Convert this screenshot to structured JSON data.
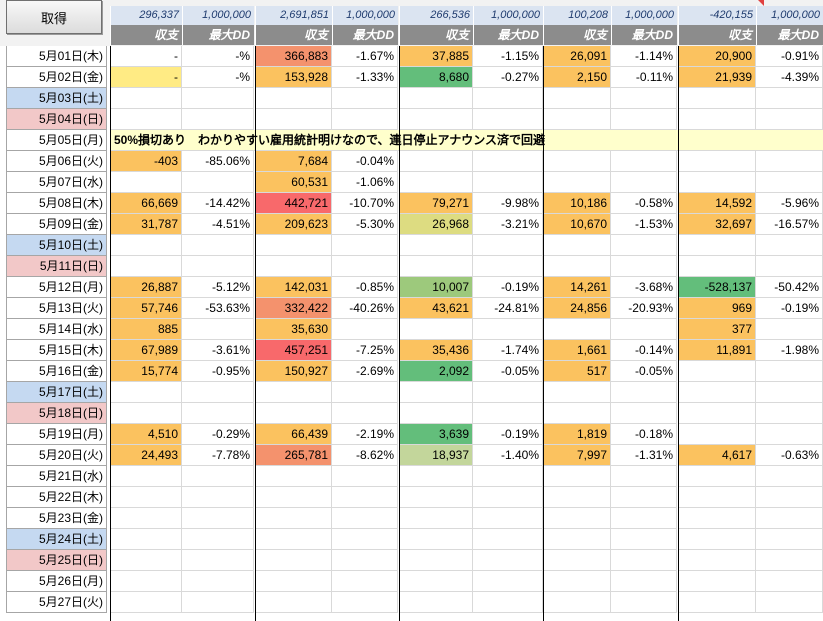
{
  "button_label": "取得",
  "columns": [
    {
      "total": "296,337",
      "capital": "1,000,000",
      "label_pl": "収支",
      "label_dd": "最大DD"
    },
    {
      "total": "2,691,851",
      "capital": "1,000,000",
      "label_pl": "収支",
      "label_dd": "最大DD"
    },
    {
      "total": "266,536",
      "capital": "1,000,000",
      "label_pl": "収支",
      "label_dd": "最大DD"
    },
    {
      "total": "100,208",
      "capital": "1,000,000",
      "label_pl": "収支",
      "label_dd": "最大DD"
    },
    {
      "total": "-420,155",
      "capital": "1,000,000",
      "label_pl": "収支",
      "label_dd": "最大DD"
    }
  ],
  "colors": {
    "yellow": "#ffeb84",
    "orange": "#fbc25f",
    "red": "#f8696b",
    "salmon": "#f4926d",
    "green": "#63be7b",
    "lightgreen": "#c3d69b",
    "yellowgreen": "#dddc81",
    "midgreen": "#9dc97c",
    "saturday": "#c5d9f1",
    "sunday": "#f2c8c8",
    "note_bg": "#ffffcc"
  },
  "rows": [
    {
      "date": "5月01日(木)",
      "cells": [
        [
          "-",
          "-%"
        ],
        [
          "366,883",
          "-1.67%"
        ],
        [
          "37,885",
          "-1.15%"
        ],
        [
          "26,091",
          "-1.14%"
        ],
        [
          "20,900",
          "-0.91%"
        ]
      ],
      "bg": [
        "",
        "salmon",
        "orange",
        "orange",
        "orange"
      ]
    },
    {
      "date": "5月02日(金)",
      "cells": [
        [
          "-",
          "-%"
        ],
        [
          "153,928",
          "-1.33%"
        ],
        [
          "8,680",
          "-0.27%"
        ],
        [
          "2,150",
          "-0.11%"
        ],
        [
          "21,939",
          "-4.39%"
        ]
      ],
      "bg": [
        "yellow",
        "orange",
        "green",
        "orange",
        "orange"
      ]
    },
    {
      "date": "5月03日(土)",
      "day": "sat"
    },
    {
      "date": "5月04日(日)",
      "day": "sun"
    },
    {
      "date": "5月05日(月)",
      "note": "50%損切あり　わかりやすい雇用統計明けなので、連日停止アナウンス済で回避"
    },
    {
      "date": "5月06日(火)",
      "cells": [
        [
          "-403",
          "-85.06%"
        ],
        [
          "7,684",
          "-0.04%"
        ],
        [
          "",
          ""
        ],
        [
          "",
          ""
        ],
        [
          "",
          ""
        ]
      ],
      "bg": [
        "orange",
        "orange",
        "",
        "",
        ""
      ]
    },
    {
      "date": "5月07日(水)",
      "cells": [
        [
          "",
          ""
        ],
        [
          "60,531",
          "-1.06%"
        ],
        [
          "",
          ""
        ],
        [
          "",
          ""
        ],
        [
          "",
          ""
        ]
      ],
      "bg": [
        "",
        "orange",
        "",
        "",
        ""
      ]
    },
    {
      "date": "5月08日(木)",
      "cells": [
        [
          "66,669",
          "-14.42%"
        ],
        [
          "442,721",
          "-10.70%"
        ],
        [
          "79,271",
          "-9.98%"
        ],
        [
          "10,186",
          "-0.58%"
        ],
        [
          "14,592",
          "-5.96%"
        ]
      ],
      "bg": [
        "orange",
        "red",
        "orange",
        "orange",
        "orange"
      ]
    },
    {
      "date": "5月09日(金)",
      "cells": [
        [
          "31,787",
          "-4.51%"
        ],
        [
          "209,623",
          "-5.30%"
        ],
        [
          "26,968",
          "-3.21%"
        ],
        [
          "10,670",
          "-1.53%"
        ],
        [
          "32,697",
          "-16.57%"
        ]
      ],
      "bg": [
        "orange",
        "orange",
        "yellowgreen",
        "orange",
        "orange"
      ]
    },
    {
      "date": "5月10日(土)",
      "day": "sat"
    },
    {
      "date": "5月11日(日)",
      "day": "sun"
    },
    {
      "date": "5月12日(月)",
      "cells": [
        [
          "26,887",
          "-5.12%"
        ],
        [
          "142,031",
          "-0.85%"
        ],
        [
          "10,007",
          "-0.19%"
        ],
        [
          "14,261",
          "-3.68%"
        ],
        [
          "-528,137",
          "-50.42%"
        ]
      ],
      "bg": [
        "orange",
        "orange",
        "midgreen",
        "orange",
        "green"
      ]
    },
    {
      "date": "5月13日(火)",
      "cells": [
        [
          "57,746",
          "-53.63%"
        ],
        [
          "332,422",
          "-40.26%"
        ],
        [
          "43,621",
          "-24.81%"
        ],
        [
          "24,856",
          "-20.93%"
        ],
        [
          "969",
          "-0.19%"
        ]
      ],
      "bg": [
        "orange",
        "salmon",
        "orange",
        "orange",
        "orange"
      ]
    },
    {
      "date": "5月14日(水)",
      "cells": [
        [
          "885",
          ""
        ],
        [
          "35,630",
          ""
        ],
        [
          "",
          ""
        ],
        [
          "",
          ""
        ],
        [
          "377",
          ""
        ]
      ],
      "bg": [
        "orange",
        "orange",
        "",
        "",
        "orange"
      ]
    },
    {
      "date": "5月15日(木)",
      "cells": [
        [
          "67,989",
          "-3.61%"
        ],
        [
          "457,251",
          "-7.25%"
        ],
        [
          "35,436",
          "-1.74%"
        ],
        [
          "1,661",
          "-0.14%"
        ],
        [
          "11,891",
          "-1.98%"
        ]
      ],
      "bg": [
        "orange",
        "red",
        "orange",
        "orange",
        "orange"
      ]
    },
    {
      "date": "5月16日(金)",
      "cells": [
        [
          "15,774",
          "-0.95%"
        ],
        [
          "150,927",
          "-2.69%"
        ],
        [
          "2,092",
          "-0.05%"
        ],
        [
          "517",
          "-0.05%"
        ],
        [
          "",
          ""
        ]
      ],
      "bg": [
        "orange",
        "orange",
        "green",
        "orange",
        ""
      ]
    },
    {
      "date": "5月17日(土)",
      "day": "sat"
    },
    {
      "date": "5月18日(日)",
      "day": "sun"
    },
    {
      "date": "5月19日(月)",
      "cells": [
        [
          "4,510",
          "-0.29%"
        ],
        [
          "66,439",
          "-2.19%"
        ],
        [
          "3,639",
          "-0.19%"
        ],
        [
          "1,819",
          "-0.18%"
        ],
        [
          "",
          ""
        ]
      ],
      "bg": [
        "orange",
        "orange",
        "green",
        "orange",
        ""
      ]
    },
    {
      "date": "5月20日(火)",
      "cells": [
        [
          "24,493",
          "-7.78%"
        ],
        [
          "265,781",
          "-8.62%"
        ],
        [
          "18,937",
          "-1.40%"
        ],
        [
          "7,997",
          "-1.31%"
        ],
        [
          "4,617",
          "-0.63%"
        ]
      ],
      "bg": [
        "orange",
        "salmon",
        "lightgreen",
        "orange",
        "orange"
      ]
    },
    {
      "date": "5月21日(水)"
    },
    {
      "date": "5月22日(木)"
    },
    {
      "date": "5月23日(金)"
    },
    {
      "date": "5月24日(土)",
      "day": "sat"
    },
    {
      "date": "5月25日(日)",
      "day": "sun"
    },
    {
      "date": "5月26日(月)"
    },
    {
      "date": "5月27日(火)"
    }
  ]
}
